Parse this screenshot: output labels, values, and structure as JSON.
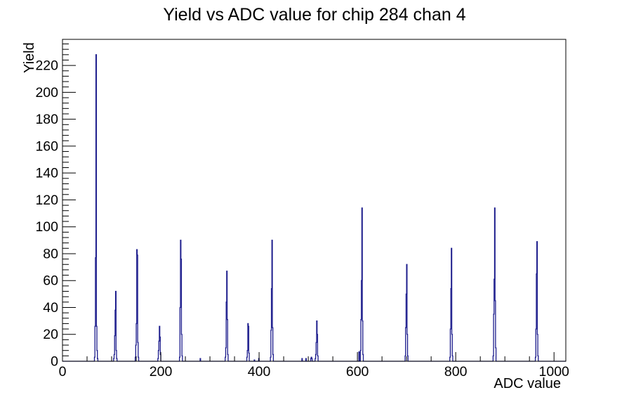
{
  "title": "Yield vs ADC value for chip 284 chan 4",
  "chart_data": {
    "type": "histogram",
    "title": "Yield vs ADC value for chip 284 chan 4",
    "xlabel": "ADC value",
    "ylabel": "Yield",
    "xlim": [
      0,
      1024
    ],
    "ylim": [
      0,
      239.4
    ],
    "x_major_ticks": [
      0,
      200,
      400,
      600,
      800,
      1000
    ],
    "x_minor_step": 50,
    "y_major_ticks": [
      0,
      20,
      40,
      60,
      80,
      100,
      120,
      140,
      160,
      180,
      200,
      220
    ],
    "y_minor_step": 4,
    "grid": false,
    "legend": "none",
    "line_color": "#1c1c8c",
    "axis_color": "#000000",
    "background_color": "#ffffff",
    "bins": [
      [
        65,
        3
      ],
      [
        66,
        26
      ],
      [
        67,
        77
      ],
      [
        68,
        228
      ],
      [
        69,
        26
      ],
      [
        70,
        8
      ],
      [
        71,
        2
      ],
      [
        104,
        2
      ],
      [
        105,
        5
      ],
      [
        106,
        19
      ],
      [
        107,
        38
      ],
      [
        108,
        52
      ],
      [
        109,
        8
      ],
      [
        110,
        2
      ],
      [
        148,
        3
      ],
      [
        149,
        12
      ],
      [
        150,
        28
      ],
      [
        151,
        83
      ],
      [
        152,
        79
      ],
      [
        153,
        14
      ],
      [
        154,
        3
      ],
      [
        194,
        2
      ],
      [
        195,
        8
      ],
      [
        196,
        15
      ],
      [
        197,
        26
      ],
      [
        198,
        18
      ],
      [
        199,
        5
      ],
      [
        238,
        3
      ],
      [
        239,
        40
      ],
      [
        240,
        90
      ],
      [
        241,
        76
      ],
      [
        242,
        20
      ],
      [
        243,
        4
      ],
      [
        280,
        2
      ],
      [
        331,
        3
      ],
      [
        332,
        10
      ],
      [
        333,
        44
      ],
      [
        334,
        67
      ],
      [
        335,
        31
      ],
      [
        336,
        5
      ],
      [
        375,
        3
      ],
      [
        376,
        8
      ],
      [
        377,
        28
      ],
      [
        378,
        26
      ],
      [
        379,
        6
      ],
      [
        390,
        1
      ],
      [
        399,
        2
      ],
      [
        423,
        3
      ],
      [
        424,
        23
      ],
      [
        425,
        54
      ],
      [
        426,
        90
      ],
      [
        427,
        25
      ],
      [
        428,
        5
      ],
      [
        487,
        2
      ],
      [
        495,
        2
      ],
      [
        505,
        2
      ],
      [
        506,
        3
      ],
      [
        507,
        2
      ],
      [
        514,
        2
      ],
      [
        515,
        5
      ],
      [
        516,
        14
      ],
      [
        517,
        30
      ],
      [
        518,
        20
      ],
      [
        519,
        4
      ],
      [
        603,
        7
      ],
      [
        606,
        8
      ],
      [
        607,
        31
      ],
      [
        608,
        60
      ],
      [
        609,
        114
      ],
      [
        610,
        30
      ],
      [
        611,
        5
      ],
      [
        697,
        4
      ],
      [
        698,
        25
      ],
      [
        699,
        50
      ],
      [
        700,
        72
      ],
      [
        701,
        20
      ],
      [
        702,
        4
      ],
      [
        788,
        3
      ],
      [
        789,
        24
      ],
      [
        790,
        54
      ],
      [
        791,
        84
      ],
      [
        792,
        20
      ],
      [
        793,
        4
      ],
      [
        876,
        4
      ],
      [
        877,
        35
      ],
      [
        878,
        61
      ],
      [
        879,
        114
      ],
      [
        880,
        45
      ],
      [
        881,
        10
      ],
      [
        962,
        3
      ],
      [
        963,
        24
      ],
      [
        964,
        65
      ],
      [
        965,
        89
      ],
      [
        966,
        20
      ],
      [
        967,
        4
      ]
    ]
  }
}
